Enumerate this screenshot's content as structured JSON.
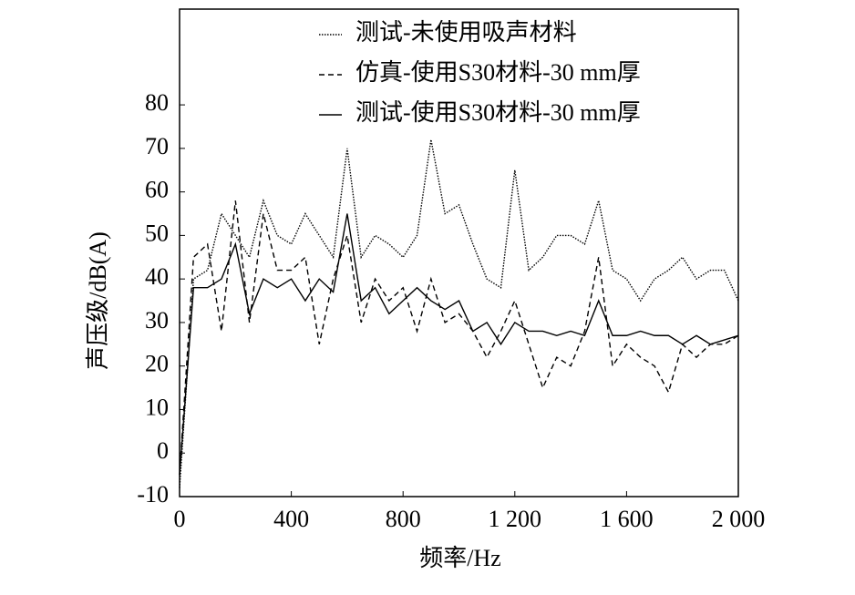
{
  "chart_data": {
    "type": "line",
    "xlabel": "频率/Hz",
    "ylabel": "声压级/dB(A)",
    "x": [
      0,
      50,
      100,
      150,
      200,
      250,
      300,
      350,
      400,
      450,
      500,
      550,
      600,
      650,
      700,
      750,
      800,
      850,
      900,
      950,
      1000,
      1050,
      1100,
      1150,
      1200,
      1250,
      1300,
      1350,
      1400,
      1450,
      1500,
      1550,
      1600,
      1650,
      1700,
      1750,
      1800,
      1850,
      1900,
      1950,
      2000
    ],
    "series": [
      {
        "name": "测试-未使用吸声材料",
        "color": "#000000",
        "linestyle": "dotted",
        "values": [
          -8,
          40,
          42,
          55,
          50,
          45,
          58,
          50,
          48,
          55,
          50,
          45,
          70,
          45,
          50,
          48,
          45,
          50,
          72,
          55,
          57,
          48,
          40,
          38,
          65,
          42,
          45,
          50,
          50,
          48,
          58,
          42,
          40,
          35,
          40,
          42,
          45,
          40,
          42,
          42,
          35
        ]
      },
      {
        "name": "仿真-使用S30材料-30 mm厚",
        "color": "#000000",
        "linestyle": "dashed",
        "values": [
          -5,
          45,
          48,
          28,
          58,
          30,
          55,
          42,
          42,
          45,
          25,
          40,
          50,
          30,
          40,
          35,
          38,
          28,
          40,
          30,
          32,
          28,
          22,
          28,
          35,
          25,
          15,
          22,
          20,
          28,
          45,
          20,
          25,
          22,
          20,
          14,
          25,
          22,
          25,
          25,
          27
        ]
      },
      {
        "name": "测试-使用S30材料-30 mm厚",
        "color": "#000000",
        "linestyle": "solid",
        "values": [
          -5,
          38,
          38,
          40,
          48,
          32,
          40,
          38,
          40,
          35,
          40,
          37,
          55,
          35,
          38,
          32,
          35,
          38,
          35,
          33,
          35,
          28,
          30,
          25,
          30,
          28,
          28,
          27,
          28,
          27,
          35,
          27,
          27,
          28,
          27,
          27,
          25,
          27,
          25,
          26,
          27
        ]
      }
    ],
    "xlim": [
      0,
      2000
    ],
    "xticks": [
      0,
      400,
      800,
      {
        "value": 1200,
        "label": "1 200"
      },
      {
        "value": 1600,
        "label": "1 600"
      },
      {
        "value": 2000,
        "label": "2 000"
      }
    ],
    "ylim": [
      -10,
      102
    ],
    "yticks": [
      -10,
      0,
      10,
      20,
      30,
      40,
      50,
      60,
      70,
      80
    ],
    "legend": "top-right"
  }
}
